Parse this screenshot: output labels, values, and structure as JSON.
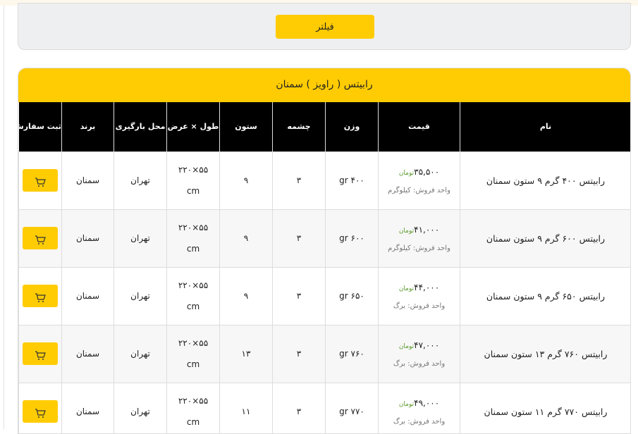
{
  "filter": {
    "button_label": "فیلتر"
  },
  "card": {
    "title": "رابیتس ( راویز )  سمنان"
  },
  "table": {
    "headers": {
      "order": "ثبت سفارش",
      "brand": "برند",
      "loading": "محل بارگیری",
      "dims": "طول × عرض",
      "column": "ستون",
      "chashmeh": "چشمه",
      "weight": "وزن",
      "price": "قیمت",
      "name": "نام"
    },
    "rows": [
      {
        "name": "رابیتس ۴۰۰ گرم ۹ ستون سمنان",
        "price": "۳۵,۵۰۰",
        "currency": "تومان",
        "unit": "واحد فروش: کیلوگرم",
        "weight": "۴۰۰ gr",
        "chashmeh": "۳",
        "column": "۹",
        "dims": "۵۵×۲۲۰",
        "dims_unit": "cm",
        "loading": "تهران",
        "brand": "سمنان"
      },
      {
        "name": "رابیتس ۶۰۰ گرم ۹ ستون سمنان",
        "price": "۴۱,۰۰۰",
        "currency": "تومان",
        "unit": "واحد فروش: کیلوگرم",
        "weight": "۶۰۰ gr",
        "chashmeh": "۳",
        "column": "۹",
        "dims": "۵۵×۲۲۰",
        "dims_unit": "cm",
        "loading": "تهران",
        "brand": "سمنان"
      },
      {
        "name": "رابیتس ۶۵۰ گرم ۹ ستون سمنان",
        "price": "۴۴,۰۰۰",
        "currency": "تومان",
        "unit": "واحد فروش: برگ",
        "weight": "۶۵۰ gr",
        "chashmeh": "۳",
        "column": "۹",
        "dims": "۵۵×۲۲۰",
        "dims_unit": "cm",
        "loading": "تهران",
        "brand": "سمنان"
      },
      {
        "name": "رابیتس ۷۶۰ گرم ۱۳ ستون سمنان",
        "price": "۴۷,۰۰۰",
        "currency": "تومان",
        "unit": "واحد فروش: برگ",
        "weight": "۷۶۰ gr",
        "chashmeh": "۳",
        "column": "۱۳",
        "dims": "۵۵×۲۲۰",
        "dims_unit": "cm",
        "loading": "تهران",
        "brand": "سمنان"
      },
      {
        "name": "رابیتس ۷۷۰ گرم ۱۱ ستون سمنان",
        "price": "۴۹,۰۰۰",
        "currency": "تومان",
        "unit": "واحد فروش: برگ",
        "weight": "۷۷۰ gr",
        "chashmeh": "۳",
        "column": "۱۱",
        "dims": "۵۵×۲۲۰",
        "dims_unit": "cm",
        "loading": "تهران",
        "brand": "سمنان"
      }
    ]
  },
  "colors": {
    "accent": "#ffcc03",
    "header_bg": "#000000",
    "currency": "#5a9a2a"
  },
  "icons": {
    "order": "cart-icon"
  }
}
